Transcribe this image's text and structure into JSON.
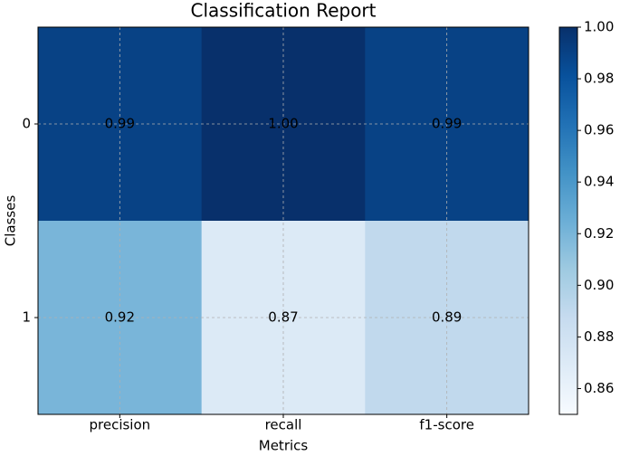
{
  "chart_data": {
    "type": "heatmap",
    "title": "Classification Report",
    "x_label": "Metrics",
    "y_label": "Classes",
    "x_categories": [
      "precision",
      "recall",
      "f1-score"
    ],
    "y_categories": [
      "0",
      "1"
    ],
    "values": [
      [
        0.99,
        1.0,
        0.99
      ],
      [
        0.92,
        0.87,
        0.89
      ]
    ],
    "value_labels": [
      [
        "0.99",
        "1.00",
        "0.99"
      ],
      [
        "0.92",
        "0.87",
        "0.89"
      ]
    ],
    "colormap": "Blues",
    "clim": [
      0.85,
      1.0
    ],
    "cticks": [
      {
        "value": 0.86,
        "label": "0.86"
      },
      {
        "value": 0.88,
        "label": "0.88"
      },
      {
        "value": 0.9,
        "label": "0.90"
      },
      {
        "value": 0.92,
        "label": "0.92"
      },
      {
        "value": 0.94,
        "label": "0.94"
      },
      {
        "value": 0.96,
        "label": "0.96"
      },
      {
        "value": 0.98,
        "label": "0.98"
      },
      {
        "value": 1.0,
        "label": "1.00"
      }
    ],
    "grid": true
  }
}
